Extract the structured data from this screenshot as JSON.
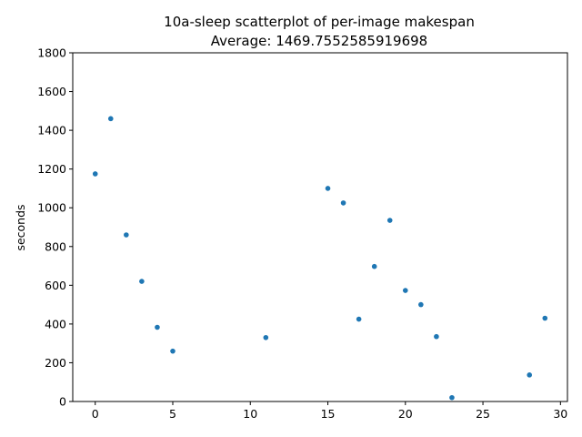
{
  "chart_data": {
    "type": "scatter",
    "title": "10a-sleep scatterplot of per-image makespan",
    "subtitle": "Average: 1469.7552585919698",
    "xlabel": "",
    "ylabel": "seconds",
    "xlim": [
      -1.45,
      30.45
    ],
    "ylim": [
      0,
      1800
    ],
    "xticks": [
      0,
      5,
      10,
      15,
      20,
      25,
      30
    ],
    "yticks": [
      0,
      200,
      400,
      600,
      800,
      1000,
      1200,
      1400,
      1600,
      1800
    ],
    "grid": false,
    "marker_color": "#1f77b4",
    "points": [
      {
        "x": 0,
        "y": 1175
      },
      {
        "x": 1,
        "y": 1460
      },
      {
        "x": 2,
        "y": 860
      },
      {
        "x": 3,
        "y": 620
      },
      {
        "x": 4,
        "y": 383
      },
      {
        "x": 5,
        "y": 260
      },
      {
        "x": 11,
        "y": 330
      },
      {
        "x": 15,
        "y": 1100
      },
      {
        "x": 16,
        "y": 1025
      },
      {
        "x": 17,
        "y": 425
      },
      {
        "x": 18,
        "y": 697
      },
      {
        "x": 19,
        "y": 935
      },
      {
        "x": 20,
        "y": 573
      },
      {
        "x": 21,
        "y": 500
      },
      {
        "x": 22,
        "y": 335
      },
      {
        "x": 23,
        "y": 20
      },
      {
        "x": 28,
        "y": 137
      },
      {
        "x": 29,
        "y": 430
      }
    ]
  }
}
